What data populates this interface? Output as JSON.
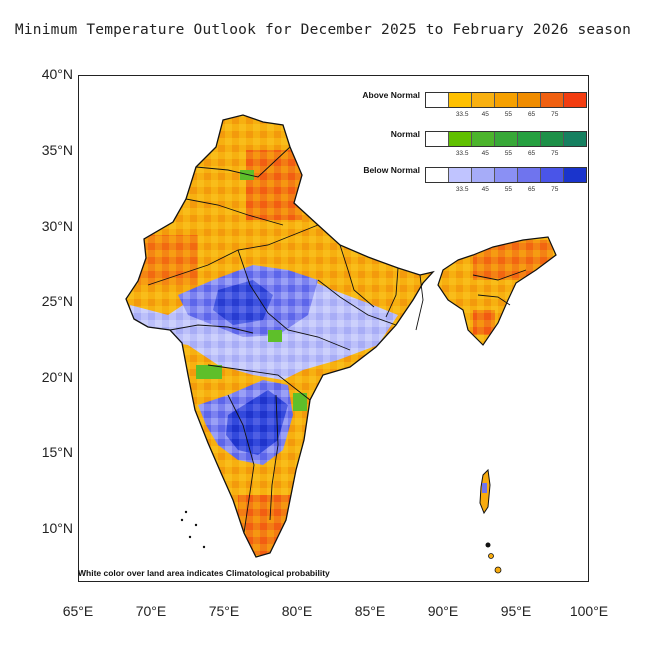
{
  "title": "Minimum Temperature Outlook for December 2025 to February 2026 season",
  "map": {
    "region": "India",
    "projection": "latitude-longitude",
    "lon_range": [
      65,
      100
    ],
    "lat_range": [
      7,
      40
    ],
    "x_tick_labels": [
      "65°E",
      "70°E",
      "75°E",
      "80°E",
      "85°E",
      "90°E",
      "95°E",
      "100°E"
    ],
    "y_tick_labels": [
      "40°N",
      "35°N",
      "30°N",
      "25°N",
      "20°N",
      "15°N",
      "10°N"
    ]
  },
  "legend": {
    "categories": [
      {
        "name": "Above Normal",
        "colors": [
          "#ffffff",
          "#ffc000",
          "#f8b010",
          "#f6a000",
          "#f08c00",
          "#f06010",
          "#f23c10"
        ]
      },
      {
        "name": "Normal",
        "colors": [
          "#ffffff",
          "#60c000",
          "#4cb42c",
          "#38a838",
          "#26a040",
          "#1d9048",
          "#168060"
        ]
      },
      {
        "name": "Below Normal",
        "colors": [
          "#ffffff",
          "#c0c4ff",
          "#a6acf8",
          "#8a90f4",
          "#6f74ee",
          "#4a55e8",
          "#1a34cc"
        ]
      }
    ],
    "tick_labels": [
      "33.5",
      "45",
      "55",
      "65",
      "75"
    ]
  },
  "note": "White color over land area indicates Climatological probability",
  "colors": {
    "above_normal": "#f7ab0f",
    "above_normal_strong": "#f05a1a",
    "normal": "#58be24",
    "below_normal_light": "#b6bbf8",
    "below_normal": "#6f74ee",
    "below_normal_strong": "#2239cf"
  }
}
